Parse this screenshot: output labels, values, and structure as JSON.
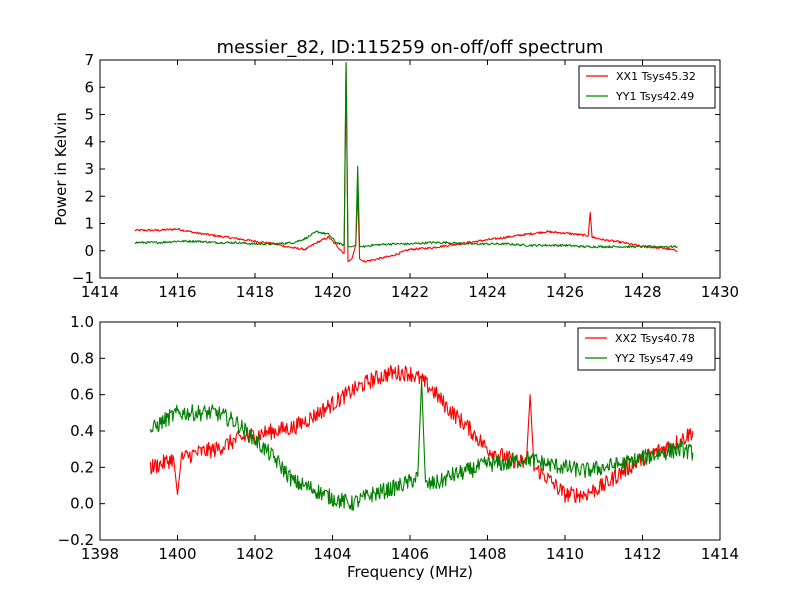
{
  "figure": {
    "title": "messier_82, ID:115259 on-off/off spectrum"
  },
  "chart_data": [
    {
      "type": "line",
      "title": "messier_82, ID:115259 on-off/off spectrum",
      "xlabel": "",
      "ylabel": "Power in Kelvin",
      "xlim": [
        1414,
        1430
      ],
      "ylim": [
        -1,
        7
      ],
      "xticks": [
        1414,
        1416,
        1418,
        1420,
        1422,
        1424,
        1426,
        1428,
        1430
      ],
      "yticks": [
        -1,
        0,
        1,
        2,
        3,
        4,
        5,
        6,
        7
      ],
      "legend": "top-right",
      "grid": false,
      "series": [
        {
          "name": "XX1 Tsys45.32",
          "color": "#ff0000",
          "x": [
            1414.9,
            1415.5,
            1416.0,
            1416.5,
            1417.0,
            1417.5,
            1418.0,
            1418.5,
            1419.0,
            1419.3,
            1419.6,
            1419.9,
            1420.1,
            1420.3,
            1420.35,
            1420.4,
            1420.5,
            1420.6,
            1420.65,
            1420.7,
            1420.8,
            1421.0,
            1421.5,
            1422.0,
            1422.5,
            1423.0,
            1423.5,
            1424.0,
            1424.5,
            1425.0,
            1425.5,
            1426.0,
            1426.3,
            1426.6,
            1426.65,
            1426.7,
            1427.0,
            1427.5,
            1428.0,
            1428.5,
            1428.9
          ],
          "y": [
            0.75,
            0.75,
            0.8,
            0.65,
            0.55,
            0.45,
            0.35,
            0.25,
            0.1,
            0.05,
            0.3,
            0.5,
            0.2,
            -0.1,
            6.9,
            -0.4,
            -0.3,
            0.2,
            2.2,
            -0.3,
            -0.4,
            -0.35,
            -0.2,
            0.05,
            0.1,
            0.2,
            0.3,
            0.4,
            0.5,
            0.6,
            0.7,
            0.65,
            0.6,
            0.55,
            1.4,
            0.5,
            0.4,
            0.3,
            0.15,
            0.1,
            0.0
          ]
        },
        {
          "name": "YY1 Tsys42.49",
          "color": "#008000",
          "x": [
            1414.9,
            1415.5,
            1416.0,
            1416.5,
            1417.0,
            1417.5,
            1418.0,
            1418.5,
            1419.0,
            1419.3,
            1419.6,
            1419.9,
            1420.1,
            1420.3,
            1420.35,
            1420.4,
            1420.5,
            1420.6,
            1420.65,
            1420.7,
            1420.8,
            1421.0,
            1421.5,
            1422.0,
            1422.5,
            1423.0,
            1423.5,
            1424.0,
            1424.5,
            1425.0,
            1425.5,
            1426.0,
            1426.5,
            1427.0,
            1427.5,
            1428.0,
            1428.5,
            1428.9
          ],
          "y": [
            0.3,
            0.3,
            0.35,
            0.35,
            0.3,
            0.3,
            0.25,
            0.25,
            0.3,
            0.45,
            0.7,
            0.6,
            0.3,
            0.2,
            6.9,
            0.15,
            0.15,
            0.2,
            3.1,
            0.15,
            0.15,
            0.2,
            0.25,
            0.25,
            0.3,
            0.3,
            0.25,
            0.25,
            0.25,
            0.2,
            0.2,
            0.2,
            0.15,
            0.15,
            0.15,
            0.15,
            0.15,
            0.15
          ]
        }
      ]
    },
    {
      "type": "line",
      "title": "",
      "xlabel": "Frequency (MHz)",
      "ylabel": "",
      "xlim": [
        1398,
        1414
      ],
      "ylim": [
        -0.2,
        1.0
      ],
      "xticks": [
        1398,
        1400,
        1402,
        1404,
        1406,
        1408,
        1410,
        1412,
        1414
      ],
      "yticks": [
        -0.2,
        0.0,
        0.2,
        0.4,
        0.6,
        0.8,
        1.0
      ],
      "legend": "top-right",
      "grid": false,
      "series": [
        {
          "name": "XX2 Tsys40.78",
          "color": "#ff0000",
          "x": [
            1399.3,
            1399.6,
            1399.9,
            1400.0,
            1400.1,
            1400.5,
            1401.0,
            1401.5,
            1402.0,
            1402.5,
            1403.0,
            1403.5,
            1404.0,
            1404.5,
            1405.0,
            1405.5,
            1406.0,
            1406.3,
            1406.6,
            1407.0,
            1407.5,
            1408.0,
            1408.5,
            1409.0,
            1409.1,
            1409.2,
            1409.5,
            1410.0,
            1410.5,
            1411.0,
            1411.5,
            1412.0,
            1412.5,
            1413.0,
            1413.3
          ],
          "y": [
            0.2,
            0.22,
            0.25,
            0.05,
            0.25,
            0.28,
            0.3,
            0.35,
            0.38,
            0.4,
            0.42,
            0.48,
            0.55,
            0.62,
            0.68,
            0.72,
            0.72,
            0.68,
            0.62,
            0.52,
            0.42,
            0.3,
            0.25,
            0.22,
            0.6,
            0.2,
            0.15,
            0.05,
            0.05,
            0.1,
            0.18,
            0.25,
            0.3,
            0.35,
            0.4
          ]
        },
        {
          "name": "YY2 Tsys47.49",
          "color": "#008000",
          "x": [
            1399.3,
            1399.6,
            1400.0,
            1400.5,
            1401.0,
            1401.5,
            1402.0,
            1402.5,
            1403.0,
            1403.5,
            1404.0,
            1404.5,
            1405.0,
            1405.5,
            1406.0,
            1406.2,
            1406.3,
            1406.4,
            1406.8,
            1407.0,
            1407.5,
            1408.0,
            1408.5,
            1409.0,
            1409.5,
            1410.0,
            1410.5,
            1411.0,
            1411.5,
            1412.0,
            1412.5,
            1413.0,
            1413.3
          ],
          "y": [
            0.4,
            0.45,
            0.5,
            0.5,
            0.5,
            0.45,
            0.35,
            0.25,
            0.12,
            0.08,
            0.03,
            0.0,
            0.05,
            0.08,
            0.12,
            0.15,
            0.68,
            0.1,
            0.12,
            0.15,
            0.18,
            0.22,
            0.22,
            0.25,
            0.22,
            0.2,
            0.18,
            0.2,
            0.22,
            0.25,
            0.28,
            0.3,
            0.28
          ]
        }
      ]
    }
  ]
}
